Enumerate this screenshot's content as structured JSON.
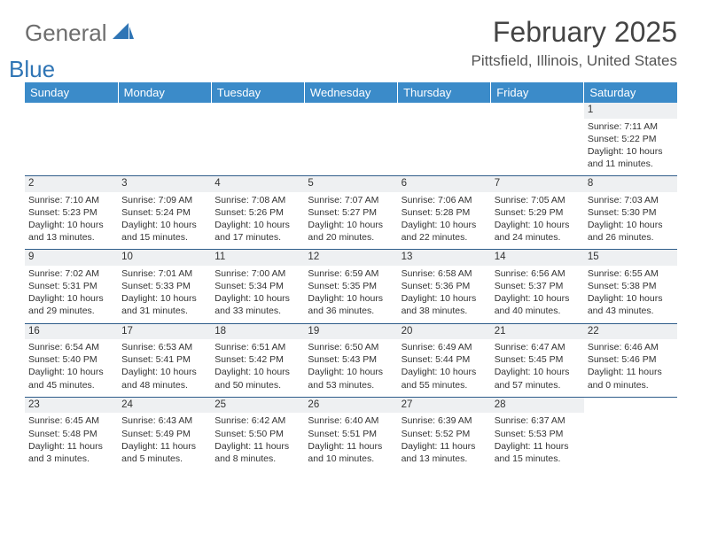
{
  "branding": {
    "logo_text_1": "General",
    "logo_text_2": "Blue",
    "logo_color_1": "#6d6d6d",
    "logo_color_2": "#2f75b5",
    "sail_color": "#2f75b5"
  },
  "title": {
    "month_year": "February 2025",
    "location": "Pittsfield, Illinois, United States",
    "title_color": "#444444",
    "location_color": "#555555",
    "title_fontsize": 32,
    "location_fontsize": 17
  },
  "calendar": {
    "header_bg": "#3b8bc9",
    "header_fg": "#ffffff",
    "row_divider_color": "#2f5d8a",
    "daynum_bg": "#eef0f2",
    "cell_fontsize": 10.5,
    "days_of_week": [
      "Sunday",
      "Monday",
      "Tuesday",
      "Wednesday",
      "Thursday",
      "Friday",
      "Saturday"
    ],
    "weeks": [
      [
        null,
        null,
        null,
        null,
        null,
        null,
        {
          "n": "1",
          "sunrise": "Sunrise: 7:11 AM",
          "sunset": "Sunset: 5:22 PM",
          "day1": "Daylight: 10 hours",
          "day2": "and 11 minutes."
        }
      ],
      [
        {
          "n": "2",
          "sunrise": "Sunrise: 7:10 AM",
          "sunset": "Sunset: 5:23 PM",
          "day1": "Daylight: 10 hours",
          "day2": "and 13 minutes."
        },
        {
          "n": "3",
          "sunrise": "Sunrise: 7:09 AM",
          "sunset": "Sunset: 5:24 PM",
          "day1": "Daylight: 10 hours",
          "day2": "and 15 minutes."
        },
        {
          "n": "4",
          "sunrise": "Sunrise: 7:08 AM",
          "sunset": "Sunset: 5:26 PM",
          "day1": "Daylight: 10 hours",
          "day2": "and 17 minutes."
        },
        {
          "n": "5",
          "sunrise": "Sunrise: 7:07 AM",
          "sunset": "Sunset: 5:27 PM",
          "day1": "Daylight: 10 hours",
          "day2": "and 20 minutes."
        },
        {
          "n": "6",
          "sunrise": "Sunrise: 7:06 AM",
          "sunset": "Sunset: 5:28 PM",
          "day1": "Daylight: 10 hours",
          "day2": "and 22 minutes."
        },
        {
          "n": "7",
          "sunrise": "Sunrise: 7:05 AM",
          "sunset": "Sunset: 5:29 PM",
          "day1": "Daylight: 10 hours",
          "day2": "and 24 minutes."
        },
        {
          "n": "8",
          "sunrise": "Sunrise: 7:03 AM",
          "sunset": "Sunset: 5:30 PM",
          "day1": "Daylight: 10 hours",
          "day2": "and 26 minutes."
        }
      ],
      [
        {
          "n": "9",
          "sunrise": "Sunrise: 7:02 AM",
          "sunset": "Sunset: 5:31 PM",
          "day1": "Daylight: 10 hours",
          "day2": "and 29 minutes."
        },
        {
          "n": "10",
          "sunrise": "Sunrise: 7:01 AM",
          "sunset": "Sunset: 5:33 PM",
          "day1": "Daylight: 10 hours",
          "day2": "and 31 minutes."
        },
        {
          "n": "11",
          "sunrise": "Sunrise: 7:00 AM",
          "sunset": "Sunset: 5:34 PM",
          "day1": "Daylight: 10 hours",
          "day2": "and 33 minutes."
        },
        {
          "n": "12",
          "sunrise": "Sunrise: 6:59 AM",
          "sunset": "Sunset: 5:35 PM",
          "day1": "Daylight: 10 hours",
          "day2": "and 36 minutes."
        },
        {
          "n": "13",
          "sunrise": "Sunrise: 6:58 AM",
          "sunset": "Sunset: 5:36 PM",
          "day1": "Daylight: 10 hours",
          "day2": "and 38 minutes."
        },
        {
          "n": "14",
          "sunrise": "Sunrise: 6:56 AM",
          "sunset": "Sunset: 5:37 PM",
          "day1": "Daylight: 10 hours",
          "day2": "and 40 minutes."
        },
        {
          "n": "15",
          "sunrise": "Sunrise: 6:55 AM",
          "sunset": "Sunset: 5:38 PM",
          "day1": "Daylight: 10 hours",
          "day2": "and 43 minutes."
        }
      ],
      [
        {
          "n": "16",
          "sunrise": "Sunrise: 6:54 AM",
          "sunset": "Sunset: 5:40 PM",
          "day1": "Daylight: 10 hours",
          "day2": "and 45 minutes."
        },
        {
          "n": "17",
          "sunrise": "Sunrise: 6:53 AM",
          "sunset": "Sunset: 5:41 PM",
          "day1": "Daylight: 10 hours",
          "day2": "and 48 minutes."
        },
        {
          "n": "18",
          "sunrise": "Sunrise: 6:51 AM",
          "sunset": "Sunset: 5:42 PM",
          "day1": "Daylight: 10 hours",
          "day2": "and 50 minutes."
        },
        {
          "n": "19",
          "sunrise": "Sunrise: 6:50 AM",
          "sunset": "Sunset: 5:43 PM",
          "day1": "Daylight: 10 hours",
          "day2": "and 53 minutes."
        },
        {
          "n": "20",
          "sunrise": "Sunrise: 6:49 AM",
          "sunset": "Sunset: 5:44 PM",
          "day1": "Daylight: 10 hours",
          "day2": "and 55 minutes."
        },
        {
          "n": "21",
          "sunrise": "Sunrise: 6:47 AM",
          "sunset": "Sunset: 5:45 PM",
          "day1": "Daylight: 10 hours",
          "day2": "and 57 minutes."
        },
        {
          "n": "22",
          "sunrise": "Sunrise: 6:46 AM",
          "sunset": "Sunset: 5:46 PM",
          "day1": "Daylight: 11 hours",
          "day2": "and 0 minutes."
        }
      ],
      [
        {
          "n": "23",
          "sunrise": "Sunrise: 6:45 AM",
          "sunset": "Sunset: 5:48 PM",
          "day1": "Daylight: 11 hours",
          "day2": "and 3 minutes."
        },
        {
          "n": "24",
          "sunrise": "Sunrise: 6:43 AM",
          "sunset": "Sunset: 5:49 PM",
          "day1": "Daylight: 11 hours",
          "day2": "and 5 minutes."
        },
        {
          "n": "25",
          "sunrise": "Sunrise: 6:42 AM",
          "sunset": "Sunset: 5:50 PM",
          "day1": "Daylight: 11 hours",
          "day2": "and 8 minutes."
        },
        {
          "n": "26",
          "sunrise": "Sunrise: 6:40 AM",
          "sunset": "Sunset: 5:51 PM",
          "day1": "Daylight: 11 hours",
          "day2": "and 10 minutes."
        },
        {
          "n": "27",
          "sunrise": "Sunrise: 6:39 AM",
          "sunset": "Sunset: 5:52 PM",
          "day1": "Daylight: 11 hours",
          "day2": "and 13 minutes."
        },
        {
          "n": "28",
          "sunrise": "Sunrise: 6:37 AM",
          "sunset": "Sunset: 5:53 PM",
          "day1": "Daylight: 11 hours",
          "day2": "and 15 minutes."
        },
        null
      ]
    ]
  }
}
